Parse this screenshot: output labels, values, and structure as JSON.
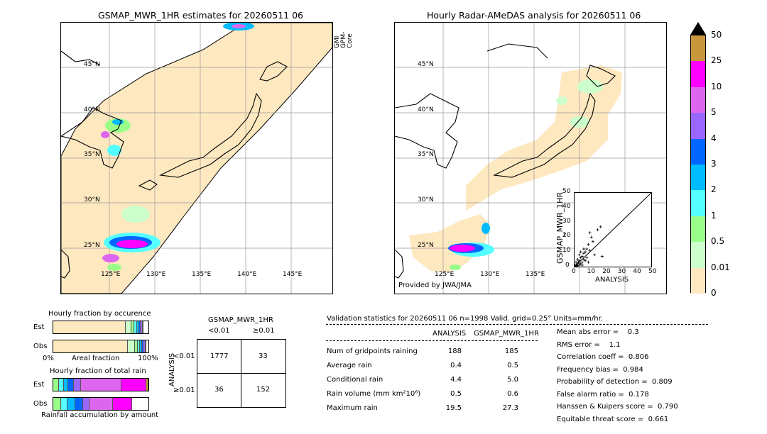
{
  "left_map": {
    "title": "GSMAP_MWR_1HR estimates for 20260511 06",
    "sat_label_1": "GPM-Core",
    "sat_label_2": "GMI",
    "lat_labels": [
      "45°N",
      "40°N",
      "35°N",
      "30°N",
      "25°N"
    ],
    "lon_labels": [
      "125°E",
      "130°E",
      "135°E",
      "140°E",
      "145°E"
    ]
  },
  "right_map": {
    "title": "Hourly Radar-AMeDAS analysis for 20260511 06",
    "credit": "Provided by JWA/JMA",
    "lat_labels": [
      "45°N",
      "40°N",
      "35°N",
      "30°N",
      "25°N"
    ],
    "lon_labels": [
      "125°E",
      "130°E",
      "135°E"
    ]
  },
  "colorbar": {
    "labels": [
      "50",
      "25",
      "10",
      "5",
      "4",
      "3",
      "2",
      "1",
      "0.5",
      "0.01",
      "0"
    ],
    "colors": [
      "#c8963c",
      "#ff00ff",
      "#dd66ee",
      "#9966ff",
      "#0066ff",
      "#00bbff",
      "#55ffff",
      "#99ff88",
      "#ccffcc",
      "#fde8c0"
    ]
  },
  "scatter": {
    "ylabel": "GSMAP_MWR_1HR",
    "xlabel": "ANALYSIS",
    "ticks": [
      "0",
      "10",
      "20",
      "30",
      "40",
      "50"
    ]
  },
  "chart_data": [
    {
      "type": "bar",
      "title": "Hourly fraction by occurence",
      "categories": [
        "Est",
        "Obs"
      ],
      "xlabel": "Areal fraction",
      "x_ticks": [
        "0%",
        "100%"
      ],
      "colors": [
        "#fde8c0",
        "#ccffcc",
        "#99ff88",
        "#55ffff",
        "#00bbff",
        "#0066ff",
        "#9966ff",
        "#dd66ee"
      ],
      "series": [
        {
          "values": [
            0.76,
            0.78
          ]
        },
        {
          "values": [
            0.06,
            0.08
          ]
        },
        {
          "values": [
            0.03,
            0.03
          ]
        },
        {
          "values": [
            0.03,
            0.02
          ]
        },
        {
          "values": [
            0.02,
            0.02
          ]
        },
        {
          "values": [
            0.02,
            0.02
          ]
        },
        {
          "values": [
            0.02,
            0.02
          ]
        },
        {
          "values": [
            0.01,
            0.01
          ]
        }
      ]
    },
    {
      "type": "bar",
      "title": "Hourly fraction of total rain",
      "footer": "Rainfall accumulation by amount",
      "categories": [
        "Est",
        "Obs"
      ],
      "colors": [
        "#99ff88",
        "#55ffff",
        "#00bbff",
        "#0066ff",
        "#9966ff",
        "#dd66ee",
        "#ff00ff",
        "#c8963c"
      ],
      "series": [
        {
          "values": [
            0.06,
            0.08
          ]
        },
        {
          "values": [
            0.05,
            0.07
          ]
        },
        {
          "values": [
            0.05,
            0.08
          ]
        },
        {
          "values": [
            0.06,
            0.08
          ]
        },
        {
          "values": [
            0.07,
            0.07
          ]
        },
        {
          "values": [
            0.43,
            0.25
          ]
        },
        {
          "values": [
            0.26,
            0.2
          ]
        },
        {
          "values": [
            0.02,
            0.0
          ]
        }
      ]
    },
    {
      "type": "scatter",
      "title": "",
      "xlabel": "ANALYSIS",
      "ylabel": "GSMAP_MWR_1HR",
      "xlim": [
        0,
        50
      ],
      "ylim": [
        0,
        50
      ],
      "points": [
        [
          0.5,
          0.3
        ],
        [
          1,
          1
        ],
        [
          1.5,
          0.5
        ],
        [
          2,
          2
        ],
        [
          2.5,
          3
        ],
        [
          3,
          1
        ],
        [
          3,
          4
        ],
        [
          4,
          2
        ],
        [
          4,
          6
        ],
        [
          5,
          3
        ],
        [
          5,
          7
        ],
        [
          6,
          5
        ],
        [
          6,
          9
        ],
        [
          7,
          4
        ],
        [
          7,
          10
        ],
        [
          8,
          12
        ],
        [
          8,
          6
        ],
        [
          9,
          15
        ],
        [
          10,
          11
        ],
        [
          11,
          20
        ],
        [
          12,
          17
        ],
        [
          13,
          8
        ],
        [
          15,
          25
        ],
        [
          17,
          27
        ],
        [
          18,
          7
        ],
        [
          1,
          3
        ],
        [
          2,
          5
        ],
        [
          3,
          8
        ],
        [
          4,
          10
        ],
        [
          6,
          12
        ],
        [
          0.3,
          1
        ],
        [
          1,
          0.2
        ],
        [
          2,
          0.5
        ],
        [
          3,
          2
        ],
        [
          5,
          1
        ],
        [
          9,
          3
        ],
        [
          10,
          23
        ]
      ]
    }
  ],
  "contingency": {
    "title": "GSMAP_MWR_1HR",
    "col_headers": [
      "<0.01",
      "≥0.01"
    ],
    "row_axis_label": "ANALYSIS",
    "row_headers": [
      "<0.01",
      "≥0.01"
    ],
    "cells": [
      [
        "1777",
        "33"
      ],
      [
        "36",
        "152"
      ]
    ]
  },
  "validation": {
    "header": "Validation statistics for 20260511 06  n=1998 Valid. grid=0.25° Units=mm/hr.",
    "col_headers": [
      "ANALYSIS",
      "GSMAP_MWR_1HR"
    ],
    "rows": [
      {
        "label": "Num of gridpoints raining",
        "a": "188",
        "b": "185"
      },
      {
        "label": "Average rain",
        "a": "0.4",
        "b": "0.5"
      },
      {
        "label": "Conditional rain",
        "a": "4.4",
        "b": "5.0"
      },
      {
        "label": "Rain volume (mm km²10⁶)",
        "a": "0.5",
        "b": "0.6"
      },
      {
        "label": "Maximum rain",
        "a": "19.5",
        "b": "27.3"
      }
    ],
    "scores": [
      "Mean abs error =    0.3",
      "RMS error =    1.1",
      "Correlation coeff =  0.806",
      "Frequency bias =  0.984",
      "Probability of detection =  0.809",
      "False alarm ratio =  0.178",
      "Hanssen & Kuipers score =  0.790",
      "Equitable threat score =  0.661"
    ]
  }
}
